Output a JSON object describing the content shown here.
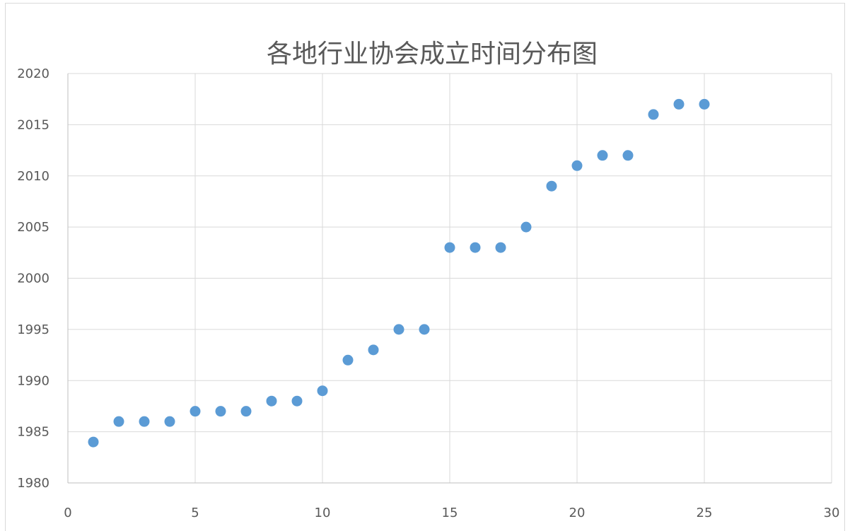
{
  "chart_data": {
    "type": "scatter",
    "title": "各地行业协会成立时间分布图",
    "xlabel": "",
    "ylabel": "",
    "xlim": [
      0,
      30
    ],
    "ylim": [
      1980,
      2020
    ],
    "x_ticks": [
      0,
      5,
      10,
      15,
      20,
      25,
      30
    ],
    "y_ticks": [
      1980,
      1985,
      1990,
      1995,
      2000,
      2005,
      2010,
      2015,
      2020
    ],
    "grid": true,
    "legend": "none",
    "series": [
      {
        "color": "#5b9bd5",
        "points": [
          {
            "x": 1,
            "y": 1984
          },
          {
            "x": 2,
            "y": 1986
          },
          {
            "x": 3,
            "y": 1986
          },
          {
            "x": 4,
            "y": 1986
          },
          {
            "x": 5,
            "y": 1987
          },
          {
            "x": 6,
            "y": 1987
          },
          {
            "x": 7,
            "y": 1987
          },
          {
            "x": 8,
            "y": 1988
          },
          {
            "x": 9,
            "y": 1988
          },
          {
            "x": 10,
            "y": 1989
          },
          {
            "x": 11,
            "y": 1992
          },
          {
            "x": 12,
            "y": 1993
          },
          {
            "x": 13,
            "y": 1995
          },
          {
            "x": 14,
            "y": 1995
          },
          {
            "x": 15,
            "y": 2003
          },
          {
            "x": 16,
            "y": 2003
          },
          {
            "x": 17,
            "y": 2003
          },
          {
            "x": 18,
            "y": 2005
          },
          {
            "x": 19,
            "y": 2009
          },
          {
            "x": 20,
            "y": 2011
          },
          {
            "x": 21,
            "y": 2012
          },
          {
            "x": 22,
            "y": 2012
          },
          {
            "x": 23,
            "y": 2016
          },
          {
            "x": 24,
            "y": 2017
          },
          {
            "x": 25,
            "y": 2017
          }
        ]
      }
    ],
    "colors": {
      "marker": "#5b9bd5",
      "grid": "#d9d9d9",
      "axis": "#bfbfbf",
      "text": "#595959",
      "border": "#d9d9d9"
    }
  }
}
